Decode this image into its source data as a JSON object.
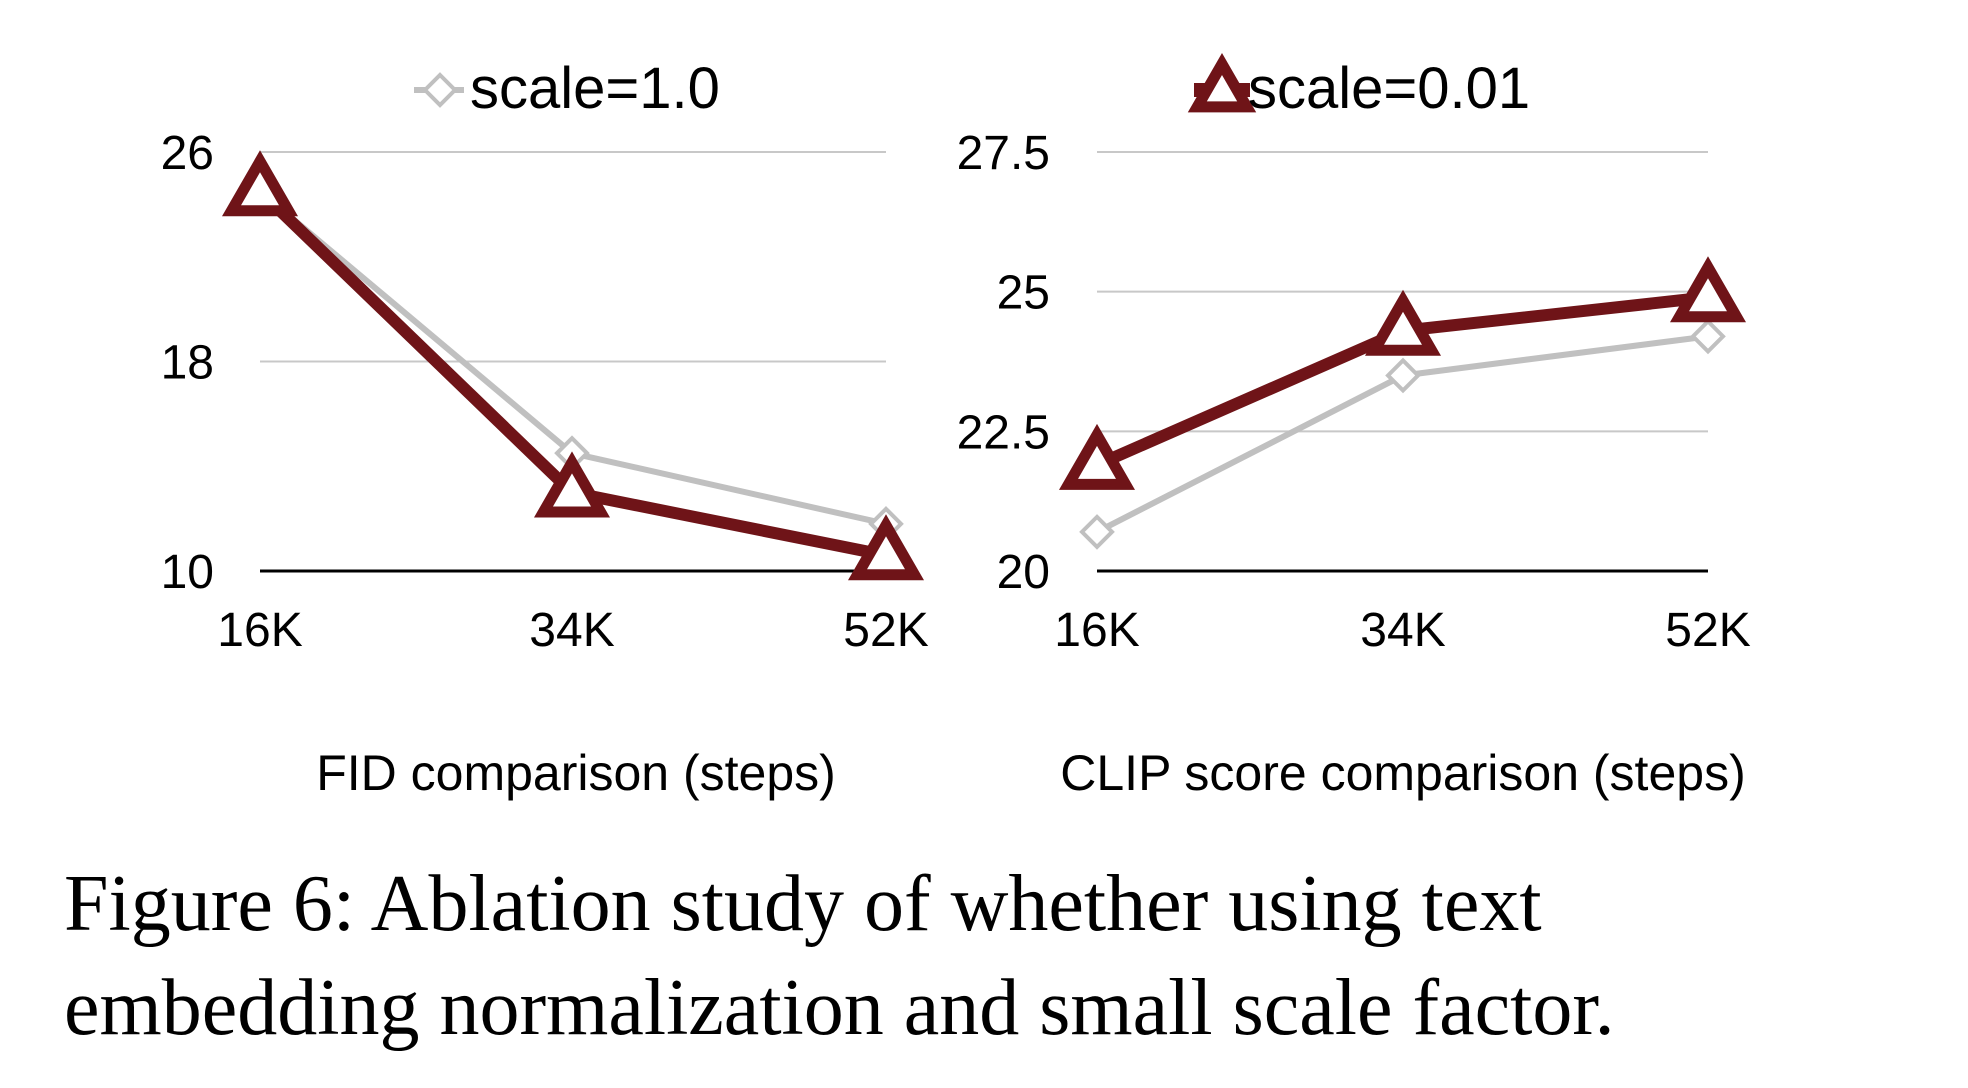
{
  "chart_data": [
    {
      "type": "line",
      "xlabel": "FID comparison (steps)",
      "categories": [
        "16K",
        "34K",
        "52K"
      ],
      "yticks": [
        "10",
        "18",
        "26"
      ],
      "ylim": [
        10,
        26
      ],
      "series": [
        {
          "name": "scale=1.0",
          "marker": "diamond",
          "color": "#c0c0c0",
          "values": [
            24.5,
            14.5,
            11.8
          ]
        },
        {
          "name": "scale=0.01",
          "marker": "triangle",
          "color": "#6f1418",
          "values": [
            24.5,
            13.0,
            10.6
          ]
        }
      ]
    },
    {
      "type": "line",
      "xlabel": "CLIP score comparison (steps)",
      "categories": [
        "16K",
        "34K",
        "52K"
      ],
      "yticks": [
        "20",
        "22.5",
        "25",
        "27.5"
      ],
      "ylim": [
        20,
        27.5
      ],
      "series": [
        {
          "name": "scale=1.0",
          "marker": "diamond",
          "color": "#c0c0c0",
          "values": [
            20.7,
            23.5,
            24.2
          ]
        },
        {
          "name": "scale=0.01",
          "marker": "triangle",
          "color": "#6f1418",
          "values": [
            21.9,
            24.3,
            24.9
          ]
        }
      ]
    }
  ],
  "legend": [
    {
      "label": "scale=1.0",
      "marker": "diamond",
      "color": "#c0c0c0"
    },
    {
      "label": "scale=0.01",
      "marker": "triangle",
      "color": "#6f1418"
    }
  ],
  "caption": {
    "line1": "Figure 6:  Ablation study of whether using text",
    "line2": "embedding normalization and small scale factor."
  }
}
